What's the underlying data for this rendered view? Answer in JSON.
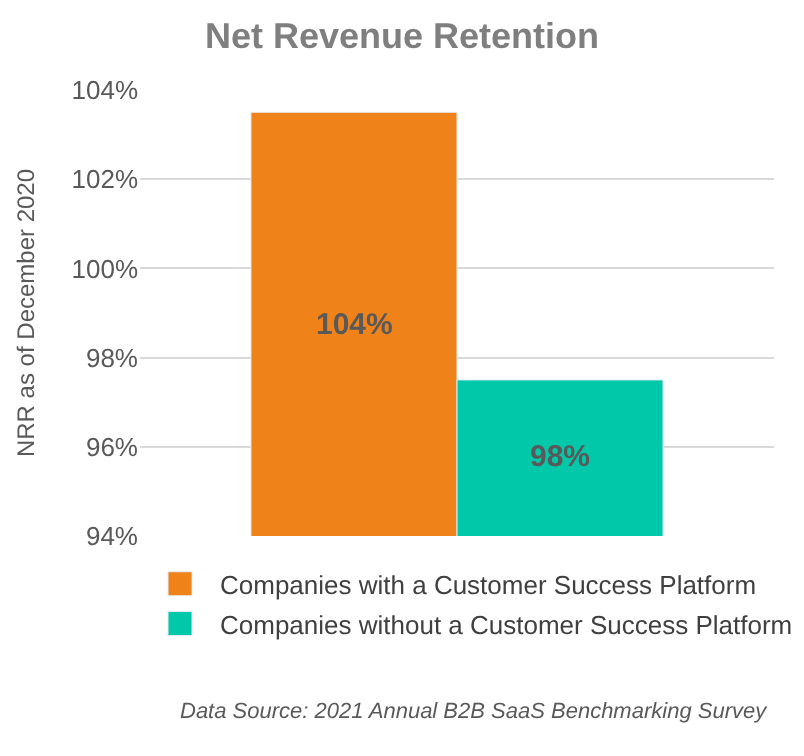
{
  "chart_data": {
    "type": "bar",
    "title": "Net Revenue Retention",
    "ylabel": "NRR as of December 2020",
    "categories": [
      null
    ],
    "series": [
      {
        "name": "Companies with a Customer Success Platform",
        "color": "#f0821a",
        "values": [
          103.5
        ],
        "value_labels": [
          "104%"
        ]
      },
      {
        "name": "Companies without a Customer Success Platform",
        "color": "#00c8a8",
        "values": [
          97.5
        ],
        "value_labels": [
          "98%"
        ]
      }
    ],
    "ylim": [
      94,
      104
    ],
    "yticks": [
      {
        "value": 94,
        "label": "94%"
      },
      {
        "value": 96,
        "label": "96%"
      },
      {
        "value": 98,
        "label": "98%"
      },
      {
        "value": 100,
        "label": "100%"
      },
      {
        "value": 102,
        "label": "102%"
      },
      {
        "value": 104,
        "label": "104%"
      }
    ],
    "grid": "y",
    "legend": "bottom",
    "annotations": [
      "Data Source: 2021 Annual B2B SaaS Benchmarking Survey"
    ]
  }
}
